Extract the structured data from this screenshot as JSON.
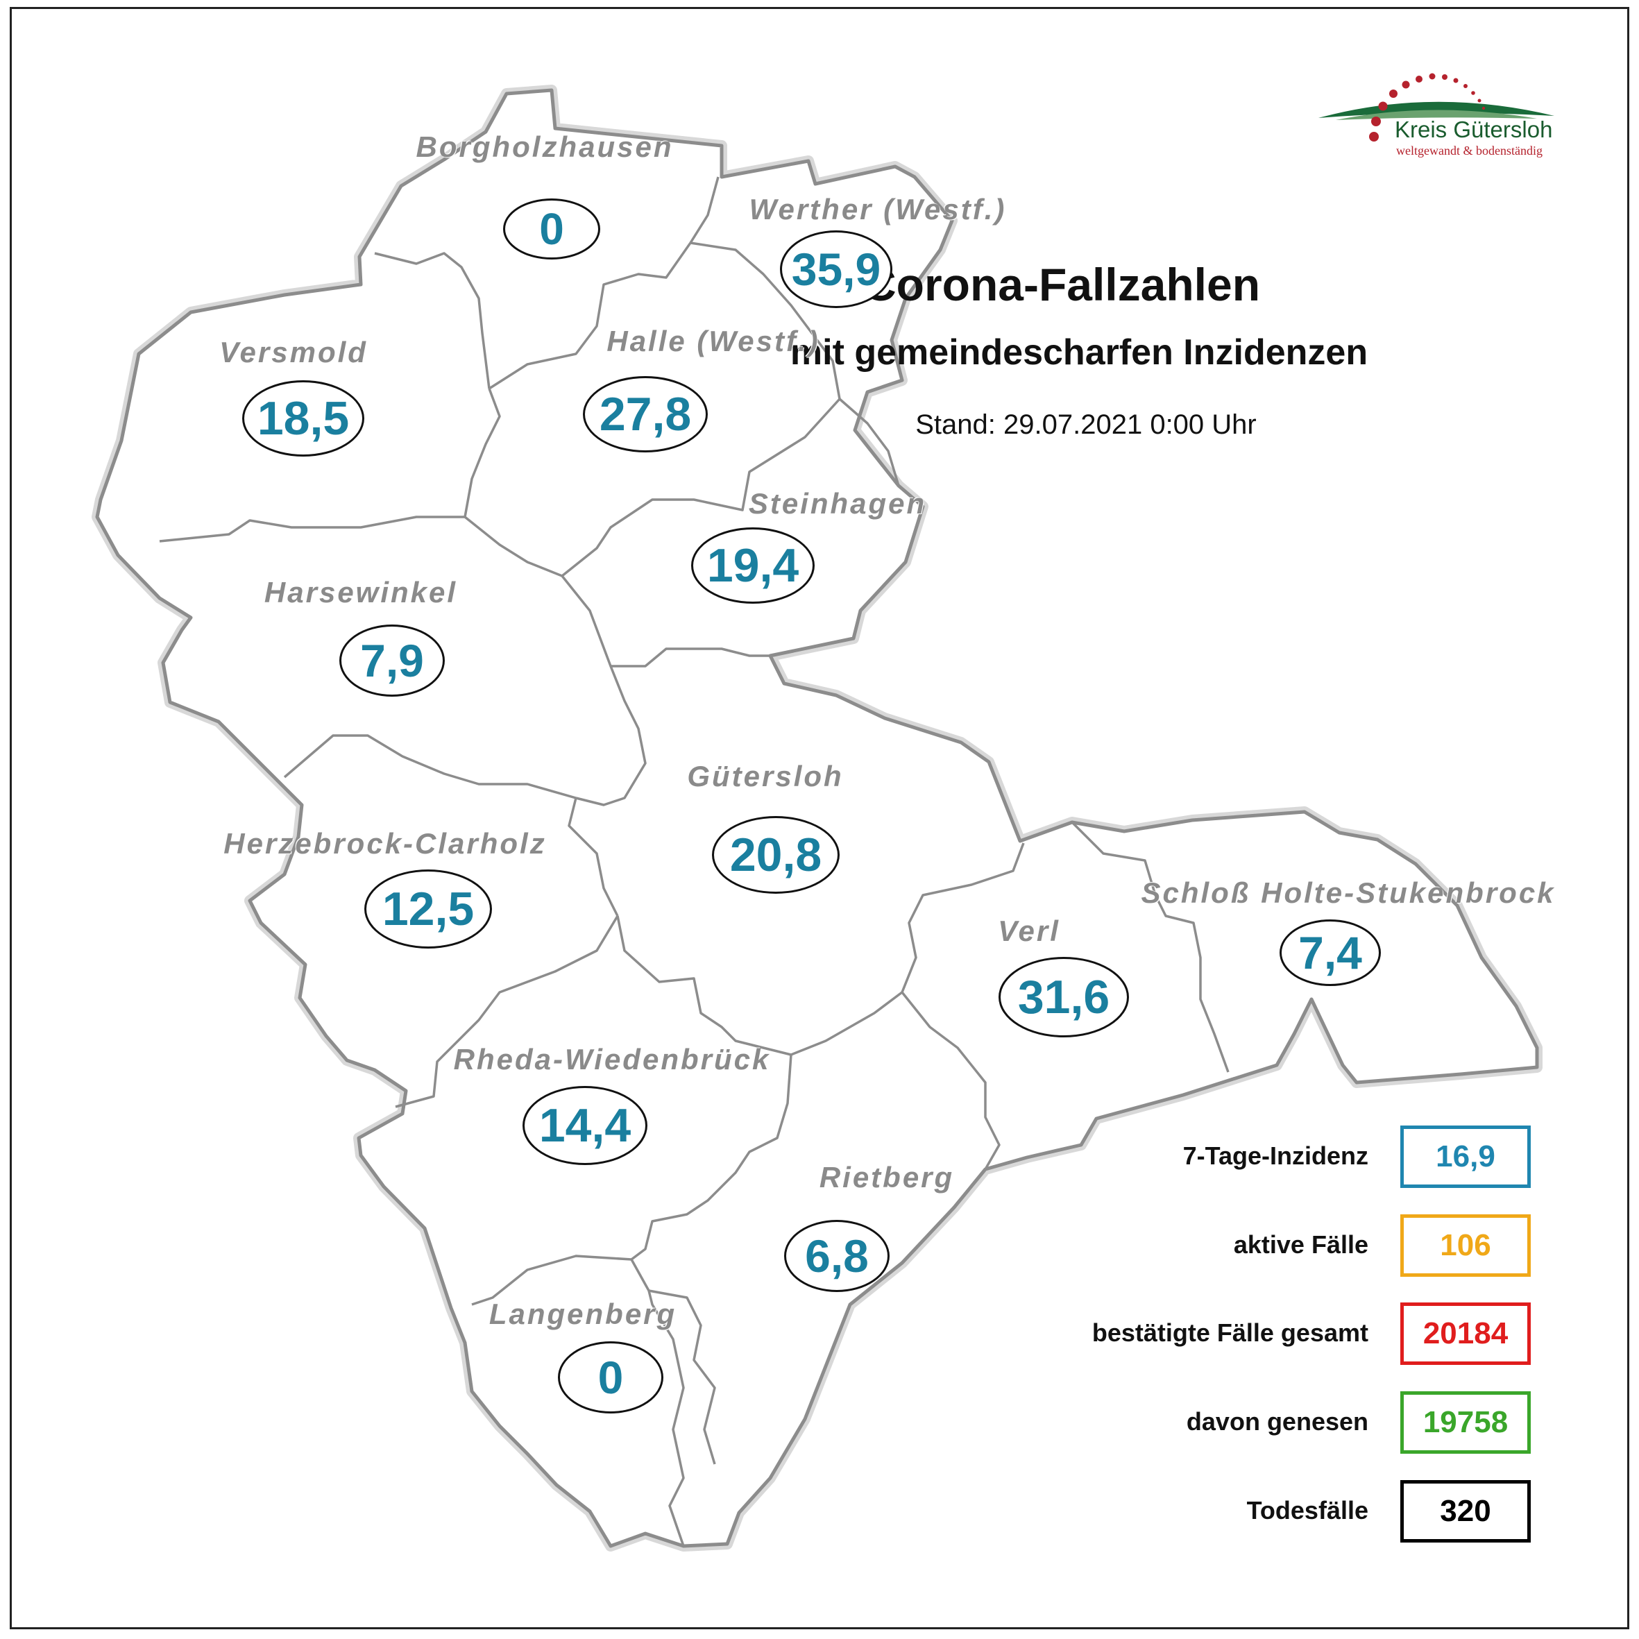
{
  "title": "Corona-Fallzahlen",
  "subtitle": "mit gemeindescharfen Inzidenzen",
  "stand": "Stand: 29.07.2021 0:00 Uhr",
  "logo": {
    "name": "Kreis Gütersloh",
    "tagline": "weltgewandt & bodenständig",
    "colors": {
      "green": "#1a6b3a",
      "red": "#b5222d"
    }
  },
  "municipalities": [
    {
      "name": "Borgholzhausen",
      "value": "0"
    },
    {
      "name": "Werther (Westf.)",
      "value": "35,9"
    },
    {
      "name": "Versmold",
      "value": "18,5"
    },
    {
      "name": "Halle (Westf.)",
      "value": "27,8"
    },
    {
      "name": "Steinhagen",
      "value": "19,4"
    },
    {
      "name": "Harsewinkel",
      "value": "7,9"
    },
    {
      "name": "Gütersloh",
      "value": "20,8"
    },
    {
      "name": "Herzebrock-Clarholz",
      "value": "12,5"
    },
    {
      "name": "Verl",
      "value": "31,6"
    },
    {
      "name": "Schloß Holte-Stukenbrock",
      "value": "7,4"
    },
    {
      "name": "Rheda-Wiedenbrück",
      "value": "14,4"
    },
    {
      "name": "Rietberg",
      "value": "6,8"
    },
    {
      "name": "Langenberg",
      "value": "0"
    }
  ],
  "legend": [
    {
      "label": "7-Tage-Inzidenz",
      "value": "16,9",
      "color": "#1f86b0"
    },
    {
      "label": "aktive Fälle",
      "value": "106",
      "color": "#f0a818"
    },
    {
      "label": "bestätigte Fälle gesamt",
      "value": "20184",
      "color": "#e01d1d"
    },
    {
      "label": "davon genesen",
      "value": "19758",
      "color": "#3aa62a"
    },
    {
      "label": "Todesfälle",
      "value": "320",
      "color": "#000000"
    }
  ],
  "colors": {
    "value_text": "#1a7f9f",
    "muni_label": "#8a8a8a",
    "border": "#8c8c8c"
  }
}
